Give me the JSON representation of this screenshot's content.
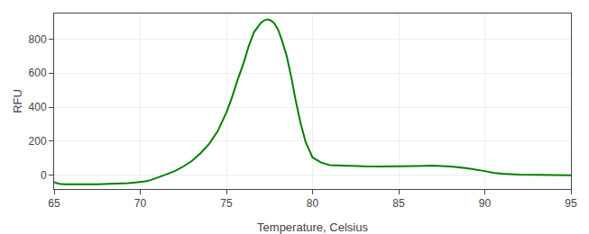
{
  "chart_data": {
    "type": "line",
    "xlabel": "Temperature, Celsius",
    "ylabel": "RFU",
    "color": "#008000",
    "grid": true,
    "xlim": [
      65,
      95
    ],
    "ylim": [
      -80,
      950
    ],
    "xticks": [
      65,
      70,
      75,
      80,
      85,
      90,
      95
    ],
    "yticks": [
      0,
      200,
      400,
      600,
      800
    ],
    "x": [
      65.0,
      65.3,
      65.6,
      66.0,
      66.5,
      67.0,
      67.5,
      68.0,
      68.5,
      69.0,
      69.3,
      69.6,
      70.0,
      70.3,
      70.6,
      71.0,
      71.5,
      72.0,
      72.5,
      73.0,
      73.5,
      74.0,
      74.5,
      75.0,
      75.3,
      75.6,
      76.0,
      76.3,
      76.6,
      77.0,
      77.2,
      77.4,
      77.6,
      77.8,
      78.0,
      78.2,
      78.5,
      78.8,
      79.0,
      79.3,
      79.6,
      80.0,
      80.5,
      81.0,
      82.0,
      83.0,
      84.0,
      85.0,
      86.0,
      87.0,
      88.0,
      89.0,
      89.5,
      90.0,
      90.5,
      91.0,
      92.0,
      93.0,
      94.0,
      95.0
    ],
    "values": [
      -40,
      -50,
      -52,
      -53,
      -53,
      -52,
      -52,
      -51,
      -50,
      -48,
      -46,
      -43,
      -40,
      -35,
      -28,
      -15,
      5,
      25,
      52,
      85,
      130,
      185,
      260,
      370,
      450,
      545,
      660,
      760,
      840,
      895,
      910,
      915,
      908,
      890,
      855,
      800,
      700,
      560,
      450,
      310,
      195,
      105,
      75,
      60,
      55,
      53,
      52,
      52,
      55,
      57,
      52,
      42,
      35,
      25,
      15,
      10,
      5,
      3,
      1,
      0
    ]
  }
}
